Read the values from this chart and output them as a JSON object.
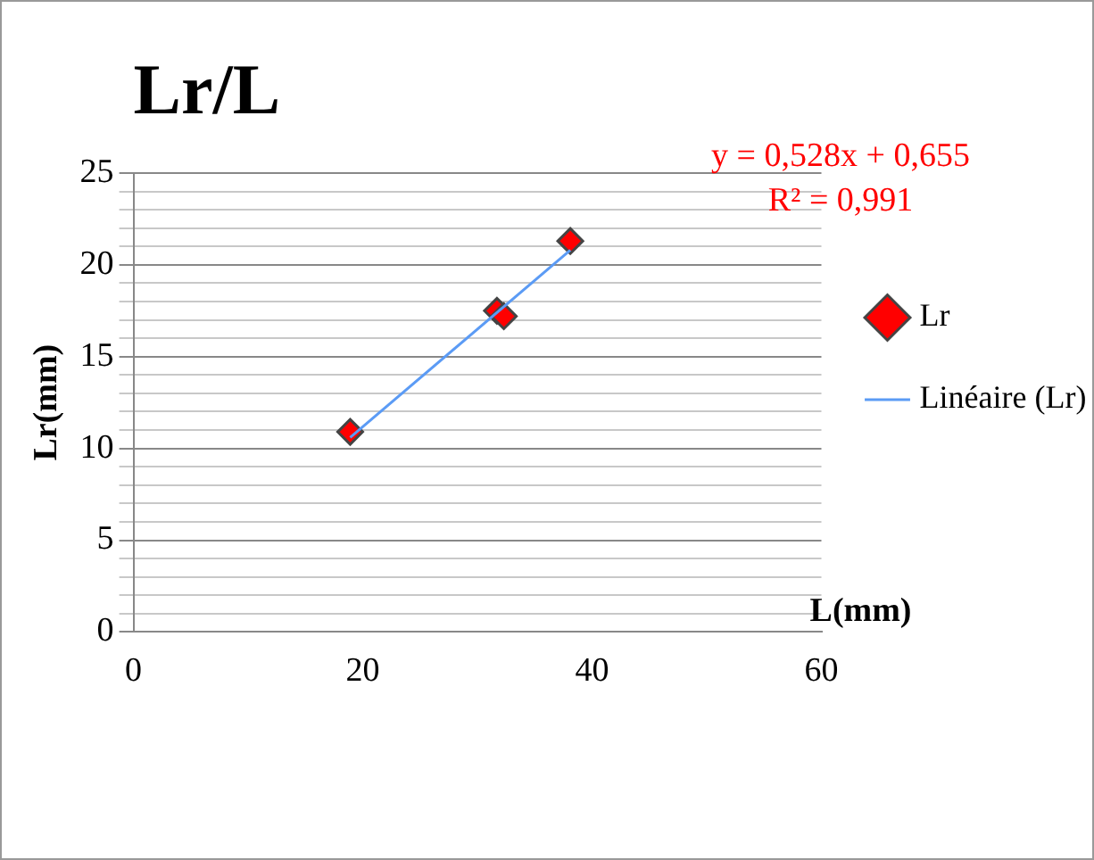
{
  "chart_data": {
    "type": "scatter",
    "title": "Lr/L",
    "xlabel": "L(mm)",
    "ylabel": "Lr(mm)",
    "series": [
      {
        "name": "Lr",
        "type": "scatter",
        "color": "#ff0000",
        "x": [
          18.9,
          31.7,
          32.3,
          38.1
        ],
        "values": [
          10.9,
          17.5,
          17.2,
          21.3
        ],
        "marker": "diamond"
      },
      {
        "name": "Linéaire (Lr)",
        "type": "line",
        "color": "#5b9bf5",
        "x": [
          18.9,
          38.1
        ],
        "values": [
          10.6,
          20.8
        ],
        "marker": "none"
      }
    ],
    "xlim": [
      0,
      60
    ],
    "xticks": [
      0,
      20,
      40,
      60
    ],
    "ylim": [
      0,
      25
    ],
    "yticks": [
      0,
      {
        "value": 1,
        "label": null
      },
      {
        "value": 2,
        "label": null
      },
      {
        "value": 3,
        "label": null
      },
      {
        "value": 4,
        "label": null
      },
      5,
      {
        "value": 6,
        "label": null
      },
      {
        "value": 7,
        "label": null
      },
      {
        "value": 8,
        "label": null
      },
      {
        "value": 9,
        "label": null
      },
      10,
      {
        "value": 11,
        "label": null
      },
      {
        "value": 12,
        "label": null
      },
      {
        "value": 13,
        "label": null
      },
      {
        "value": 14,
        "label": null
      },
      15,
      {
        "value": 16,
        "label": null
      },
      {
        "value": 17,
        "label": null
      },
      {
        "value": 18,
        "label": null
      },
      {
        "value": 19,
        "label": null
      },
      20,
      {
        "value": 21,
        "label": null
      },
      {
        "value": 22,
        "label": null
      },
      {
        "value": 23,
        "label": null
      },
      {
        "value": 24,
        "label": null
      },
      25
    ],
    "grid": "y",
    "legend": "right",
    "annotations": [
      "y = 0,528x + 0,655\nR² = 0,991"
    ]
  }
}
